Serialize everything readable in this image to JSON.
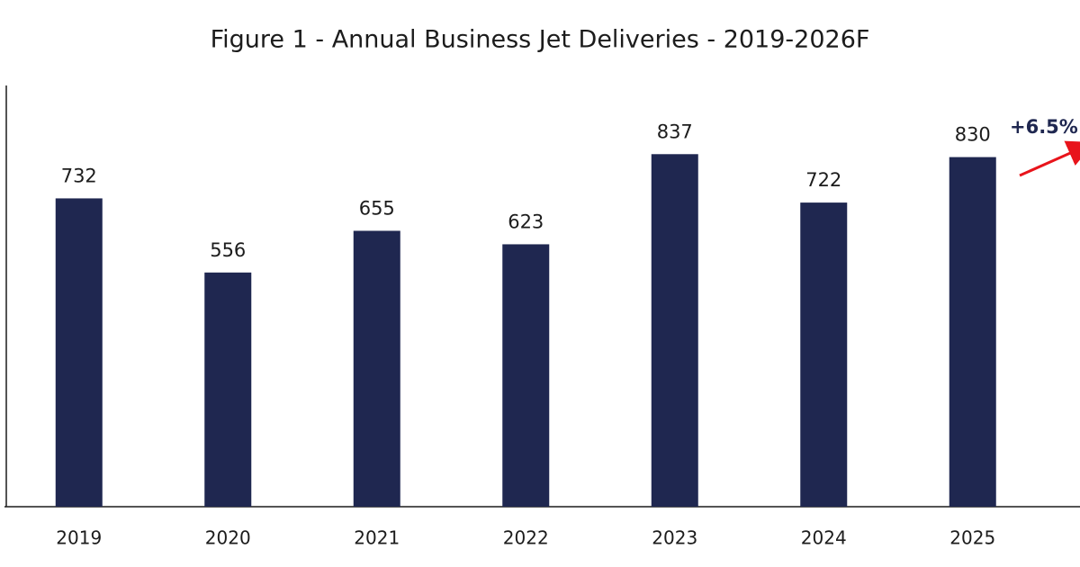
{
  "chart_data": {
    "type": "bar",
    "title": "Figure 1 - Annual Business Jet Deliveries - 2019-2026F",
    "categories": [
      "2019",
      "2020",
      "2021",
      "2022",
      "2023",
      "2024",
      "2025"
    ],
    "values": [
      732,
      556,
      655,
      623,
      837,
      722,
      830
    ],
    "color": "#1f2750",
    "ylim": [
      0,
      1000
    ],
    "annotation": "+6.5%"
  }
}
